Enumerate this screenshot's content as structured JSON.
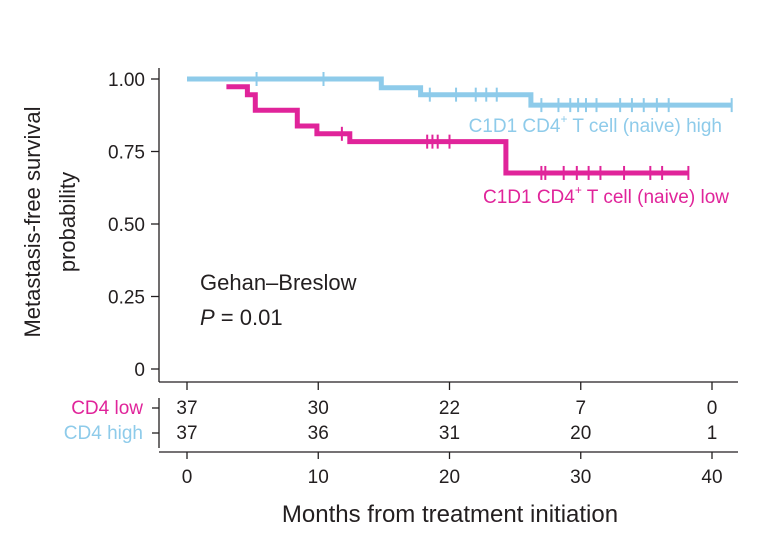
{
  "chart_data": {
    "type": "line",
    "subtype": "kaplan-meier",
    "ylabel_line1": "Metastasis-free survival",
    "ylabel_line2": "probability",
    "xlabel": "Months from treatment initiation",
    "xlim": [
      0,
      42
    ],
    "ylim": [
      0,
      1.0
    ],
    "xticks": [
      "0",
      "10",
      "20",
      "30",
      "40"
    ],
    "yticks": [
      "0",
      "0.25",
      "0.50",
      "0.75",
      "1.00"
    ],
    "stat_test": "Gehan–Breslow",
    "p_label": "P",
    "p_value": " = 0.01",
    "series": [
      {
        "name": "C1D1 CD4 T cell (naive) high",
        "label_base": "C1D1 CD4",
        "label_sup": "+",
        "label_rest": " T cell (naive) high",
        "color": "#8ecbea",
        "steps": [
          [
            0,
            1.0
          ],
          [
            14.8,
            1.0
          ],
          [
            14.8,
            0.97
          ],
          [
            17.8,
            0.97
          ],
          [
            17.8,
            0.946
          ],
          [
            26.2,
            0.946
          ],
          [
            26.2,
            0.91
          ],
          [
            41.5,
            0.91
          ]
        ],
        "censored": [
          [
            5.3,
            1.0
          ],
          [
            10.4,
            1.0
          ],
          [
            18.5,
            0.946
          ],
          [
            20.5,
            0.946
          ],
          [
            22,
            0.946
          ],
          [
            22.8,
            0.946
          ],
          [
            23.6,
            0.946
          ],
          [
            27,
            0.91
          ],
          [
            28.3,
            0.91
          ],
          [
            29.2,
            0.91
          ],
          [
            29.8,
            0.91
          ],
          [
            30.4,
            0.91
          ],
          [
            31.2,
            0.91
          ],
          [
            33,
            0.91
          ],
          [
            33.9,
            0.91
          ],
          [
            34.8,
            0.91
          ],
          [
            35.8,
            0.91
          ],
          [
            36.7,
            0.91
          ],
          [
            41.5,
            0.91
          ]
        ]
      },
      {
        "name": "C1D1 CD4 T cell (naive) low",
        "label_base": "C1D1 CD4",
        "label_sup": "+",
        "label_rest": " T cell (naive) low",
        "color": "#e0249a",
        "steps": [
          [
            3.0,
            0.973
          ],
          [
            4.6,
            0.973
          ],
          [
            4.6,
            0.946
          ],
          [
            5.2,
            0.946
          ],
          [
            5.2,
            0.892
          ],
          [
            8.4,
            0.892
          ],
          [
            8.4,
            0.838
          ],
          [
            9.9,
            0.838
          ],
          [
            9.9,
            0.811
          ],
          [
            12.4,
            0.811
          ],
          [
            12.4,
            0.784
          ],
          [
            24.3,
            0.784
          ],
          [
            24.3,
            0.676
          ],
          [
            38.2,
            0.676
          ]
        ],
        "censored": [
          [
            11.8,
            0.811
          ],
          [
            18.3,
            0.784
          ],
          [
            18.7,
            0.784
          ],
          [
            19.1,
            0.784
          ],
          [
            20,
            0.784
          ],
          [
            27,
            0.676
          ],
          [
            27.3,
            0.676
          ],
          [
            28.7,
            0.676
          ],
          [
            29.7,
            0.676
          ],
          [
            30.6,
            0.676
          ],
          [
            31.5,
            0.676
          ],
          [
            33.3,
            0.676
          ],
          [
            35.3,
            0.676
          ],
          [
            36.2,
            0.676
          ],
          [
            38.2,
            0.676
          ]
        ]
      }
    ],
    "risk_table": {
      "times": [
        0,
        10,
        20,
        30,
        40
      ],
      "rows": [
        {
          "label": "CD4 low",
          "color": "#e0249a",
          "counts": [
            "37",
            "30",
            "22",
            "7",
            "0"
          ]
        },
        {
          "label": "CD4 high",
          "color": "#8ecbea",
          "counts": [
            "37",
            "36",
            "31",
            "20",
            "1"
          ]
        }
      ]
    }
  }
}
